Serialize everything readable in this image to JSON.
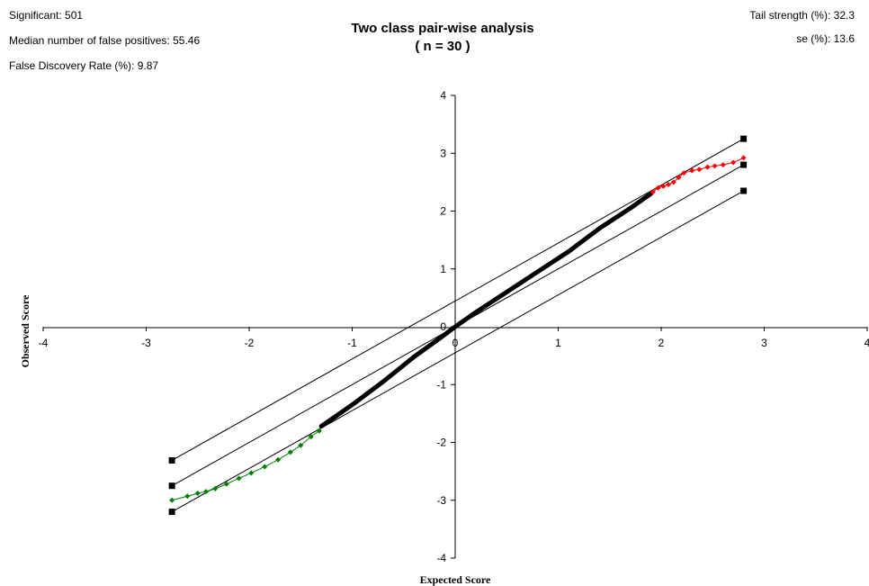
{
  "stats": {
    "significant": "Significant: 501",
    "median_fp": "Median number of false positives: 55.46",
    "fdr": "False Discovery Rate (%): 9.87",
    "tail_strength": "Tail strength (%): 32.3",
    "se": "se (%): 13.6"
  },
  "chart_data": {
    "type": "scatter",
    "title": "Two class pair-wise analysis",
    "subtitle": "( n = 30 )",
    "xlabel": "Expected Score",
    "ylabel": "Observed Score",
    "xlim": [
      -4,
      4
    ],
    "ylim": [
      -4,
      4
    ],
    "xticks": [
      "-4",
      "-3",
      "-2",
      "-1",
      "0",
      "1",
      "2",
      "3",
      "4"
    ],
    "yticks": [
      "4",
      "3",
      "2",
      "1",
      "0",
      "-1",
      "-2",
      "-3",
      "-4"
    ],
    "colors": {
      "significant_up": "#ff0000",
      "significant_down": "#008000",
      "nonsignificant": "#000000",
      "reference": "#000000"
    },
    "reference_lines": [
      {
        "name": "upper",
        "x": [
          -2.75,
          2.8
        ],
        "y": [
          -2.31,
          3.25
        ]
      },
      {
        "name": "identity",
        "x": [
          -2.75,
          2.8
        ],
        "y": [
          -2.75,
          2.8
        ]
      },
      {
        "name": "lower",
        "x": [
          -2.75,
          2.8
        ],
        "y": [
          -3.2,
          2.35
        ]
      }
    ],
    "series": [
      {
        "points": [
          [
            -1.3,
            -1.72
          ],
          [
            -1.0,
            -1.35
          ],
          [
            -0.7,
            -0.95
          ],
          [
            -0.4,
            -0.52
          ],
          [
            -0.15,
            -0.2
          ],
          [
            0.0,
            0.0
          ],
          [
            0.2,
            0.25
          ],
          [
            0.5,
            0.6
          ],
          [
            0.8,
            0.95
          ],
          [
            1.1,
            1.3
          ],
          [
            1.4,
            1.7
          ],
          [
            1.7,
            2.05
          ],
          [
            1.9,
            2.3
          ]
        ]
      },
      {
        "points": [
          [
            1.92,
            2.33
          ],
          [
            1.97,
            2.4
          ],
          [
            2.02,
            2.43
          ],
          [
            2.07,
            2.46
          ],
          [
            2.12,
            2.5
          ],
          [
            2.17,
            2.58
          ],
          [
            2.22,
            2.66
          ],
          [
            2.3,
            2.7
          ],
          [
            2.37,
            2.72
          ],
          [
            2.45,
            2.76
          ],
          [
            2.52,
            2.78
          ],
          [
            2.6,
            2.8
          ],
          [
            2.7,
            2.84
          ],
          [
            2.8,
            2.92
          ]
        ]
      },
      {
        "points": [
          [
            -2.75,
            -3.0
          ],
          [
            -2.6,
            -2.93
          ],
          [
            -2.5,
            -2.88
          ],
          [
            -2.42,
            -2.85
          ],
          [
            -2.33,
            -2.8
          ],
          [
            -2.22,
            -2.72
          ],
          [
            -2.1,
            -2.62
          ],
          [
            -1.98,
            -2.53
          ],
          [
            -1.85,
            -2.42
          ],
          [
            -1.72,
            -2.3
          ],
          [
            -1.6,
            -2.17
          ],
          [
            -1.5,
            -2.05
          ],
          [
            -1.4,
            -1.9
          ],
          [
            -1.32,
            -1.8
          ]
        ]
      }
    ]
  }
}
